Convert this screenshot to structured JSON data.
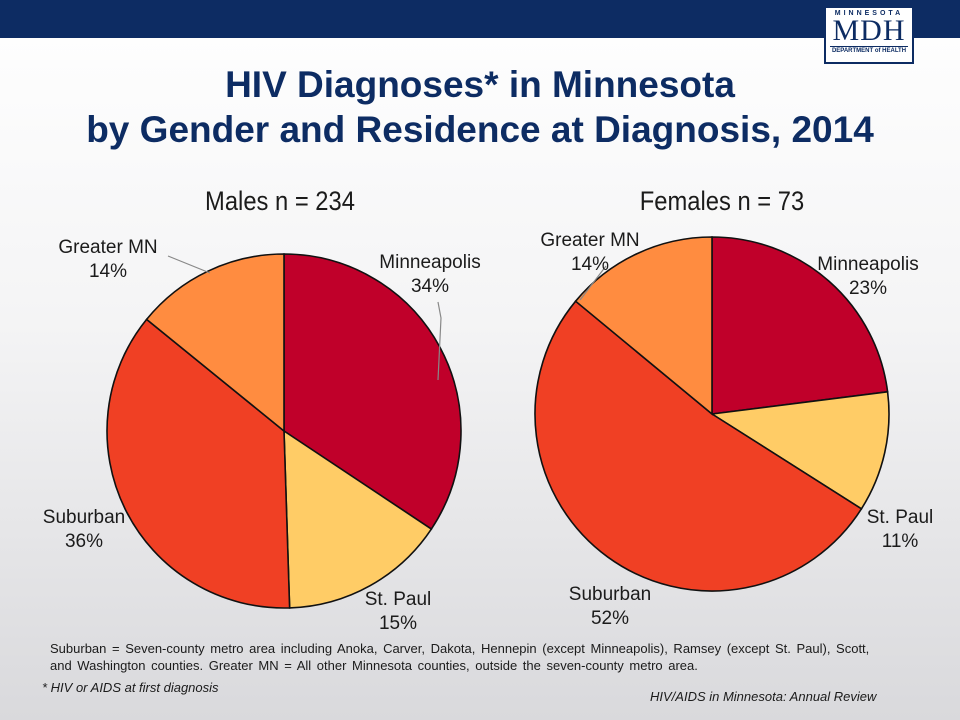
{
  "header": {
    "logo_state": "MINNESOTA",
    "logo_text": "MDH",
    "logo_subtitle": "DEPARTMENT of HEALTH"
  },
  "title_line1": "HIV Diagnoses* in Minnesota",
  "title_line2": "by Gender and Residence at Diagnosis, 2014",
  "chart_data": [
    {
      "type": "pie",
      "title": "Males n = 234",
      "slices": [
        {
          "label": "Minneapolis",
          "value": 34,
          "display": "34%",
          "color": "#c0002a"
        },
        {
          "label": "St. Paul",
          "value": 15,
          "display": "15%",
          "color": "#ffcc66"
        },
        {
          "label": "Suburban",
          "value": 36,
          "display": "36%",
          "color": "#f04024"
        },
        {
          "label": "Greater MN",
          "value": 14,
          "display": "14%",
          "color": "#ff8c40"
        }
      ]
    },
    {
      "type": "pie",
      "title": "Females n = 73",
      "slices": [
        {
          "label": "Minneapolis",
          "value": 23,
          "display": "23%",
          "color": "#c0002a"
        },
        {
          "label": "St. Paul",
          "value": 11,
          "display": "11%",
          "color": "#ffcc66"
        },
        {
          "label": "Suburban",
          "value": 52,
          "display": "52%",
          "color": "#f04024"
        },
        {
          "label": "Greater MN",
          "value": 14,
          "display": "14%",
          "color": "#ff8c40"
        }
      ]
    }
  ],
  "footnote_line1": "Suburban = Seven-county metro area including Anoka, Carver, Dakota, Hennepin (except Minneapolis), Ramsey (except St. Paul), Scott,",
  "footnote_line2": "and Washington counties.  Greater MN = All other Minnesota counties, outside the seven-county metro area.",
  "asterisk_note": "* HIV or AIDS at first diagnosis",
  "source": "HIV/AIDS in Minnesota: Annual Review"
}
